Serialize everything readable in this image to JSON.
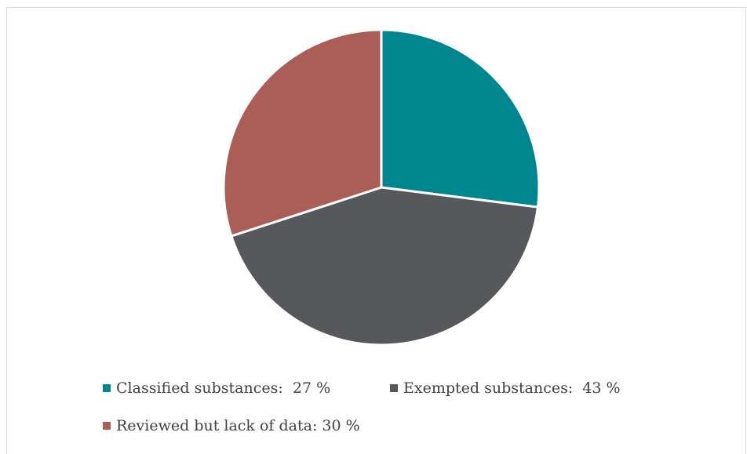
{
  "chart_data": {
    "type": "pie",
    "title": "",
    "slices": [
      {
        "label": "Classified substances:  27 %",
        "value": 27,
        "color": "#00868f"
      },
      {
        "label": "Exempted substances:  43 %",
        "value": 43,
        "color": "#57585c"
      },
      {
        "label": "Reviewed but lack of data: 30 %",
        "value": 30,
        "color": "#ab5e57"
      }
    ],
    "start_angle_deg": 0,
    "direction": "clockwise",
    "slice_border_color": "#ffffff",
    "legend_position": "bottom"
  }
}
